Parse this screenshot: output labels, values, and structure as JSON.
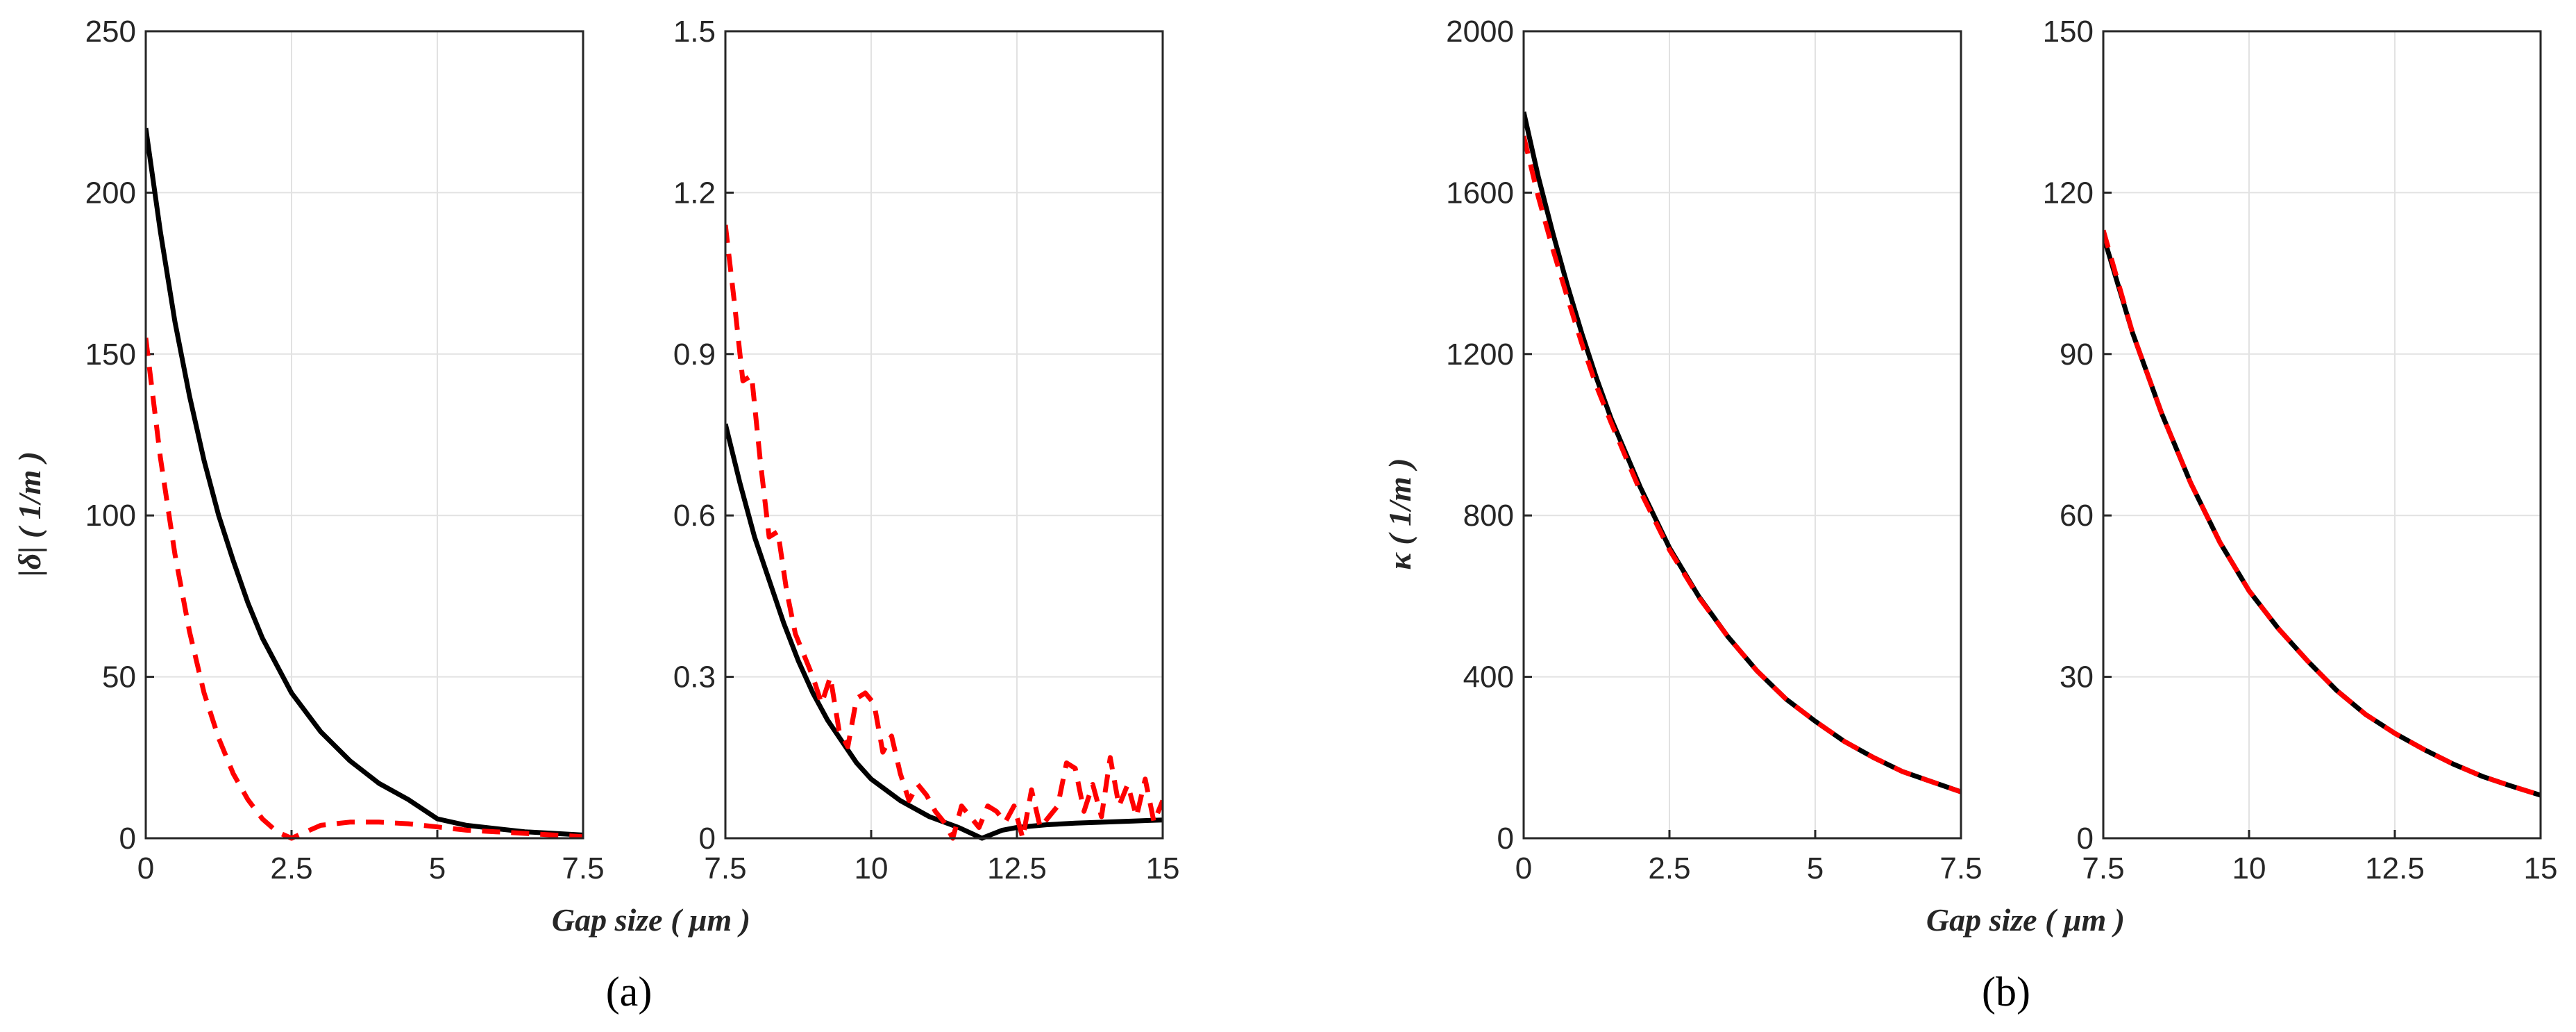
{
  "figure": {
    "panel_a_label": "(a)",
    "panel_b_label": "(b)",
    "a_xlabel": "Gap size ( μm )",
    "b_xlabel": "Gap size ( μm )",
    "a_ylabel": "|δ| ( 1/m )",
    "b_ylabel": "κ ( 1/m )"
  },
  "colors": {
    "solid_series": "#000000",
    "dashed_series": "#ff0000"
  },
  "chart_data": [
    {
      "type": "line",
      "panel": "a-left",
      "xlim": [
        0,
        7.5
      ],
      "ylim": [
        0,
        250
      ],
      "xticks": [
        "0",
        "2.5",
        "5",
        "7.5"
      ],
      "yticks": [
        "0",
        "50",
        "100",
        "150",
        "200",
        "250"
      ],
      "grid": true,
      "series": [
        {
          "style": "solid",
          "color": "#000000",
          "x": [
            0,
            0.25,
            0.5,
            0.75,
            1,
            1.25,
            1.5,
            1.75,
            2,
            2.5,
            3,
            3.5,
            4,
            4.5,
            5,
            5.5,
            6,
            6.5,
            7,
            7.5
          ],
          "y": [
            220,
            188,
            160,
            137,
            117,
            100,
            86,
            73,
            62,
            45,
            33,
            24,
            17,
            12,
            6,
            4,
            3,
            2,
            1.5,
            1
          ]
        },
        {
          "style": "dashed",
          "color": "#ff0000",
          "x": [
            0,
            0.25,
            0.5,
            0.75,
            1,
            1.25,
            1.5,
            1.75,
            2,
            2.25,
            2.5,
            2.75,
            3,
            3.5,
            4,
            4.5,
            5,
            5.5,
            6,
            6.5,
            7,
            7.5
          ],
          "y": [
            155,
            118,
            88,
            64,
            45,
            31,
            20,
            12,
            6,
            2,
            0,
            2,
            4,
            5,
            5,
            4.5,
            3.5,
            2.5,
            2,
            1.5,
            1,
            0.5
          ]
        }
      ]
    },
    {
      "type": "line",
      "panel": "a-right",
      "xlim": [
        7.5,
        15
      ],
      "ylim": [
        0,
        1.5
      ],
      "xticks": [
        "7.5",
        "10",
        "12.5",
        "15"
      ],
      "yticks": [
        "0",
        "0.3",
        "0.6",
        "0.9",
        "1.2",
        "1.5"
      ],
      "grid": true,
      "series": [
        {
          "style": "solid",
          "color": "#000000",
          "x": [
            7.5,
            7.75,
            8,
            8.25,
            8.5,
            8.75,
            9,
            9.25,
            9.5,
            9.75,
            10,
            10.5,
            11,
            11.5,
            11.9,
            12.25,
            12.5,
            13,
            13.5,
            14,
            14.5,
            15
          ],
          "y": [
            0.77,
            0.66,
            0.56,
            0.48,
            0.4,
            0.33,
            0.27,
            0.22,
            0.18,
            0.14,
            0.11,
            0.07,
            0.04,
            0.02,
            0.0,
            0.015,
            0.02,
            0.025,
            0.028,
            0.03,
            0.032,
            0.034
          ]
        },
        {
          "style": "dashed",
          "color": "#ff0000",
          "x": [
            7.5,
            7.65,
            7.8,
            7.95,
            8.1,
            8.25,
            8.4,
            8.55,
            8.7,
            8.85,
            9,
            9.15,
            9.3,
            9.45,
            9.6,
            9.75,
            9.9,
            10.05,
            10.2,
            10.35,
            10.5,
            10.65,
            10.8,
            10.95,
            11.1,
            11.25,
            11.4,
            11.55,
            11.7,
            11.85,
            12,
            12.15,
            12.3,
            12.45,
            12.6,
            12.75,
            12.9,
            13.05,
            13.2,
            13.35,
            13.5,
            13.65,
            13.8,
            13.95,
            14.1,
            14.25,
            14.4,
            14.55,
            14.7,
            14.85,
            15
          ],
          "y": [
            1.14,
            1.0,
            0.85,
            0.86,
            0.7,
            0.56,
            0.57,
            0.46,
            0.38,
            0.34,
            0.3,
            0.25,
            0.3,
            0.2,
            0.17,
            0.26,
            0.27,
            0.25,
            0.16,
            0.19,
            0.12,
            0.07,
            0.1,
            0.08,
            0.05,
            0.03,
            0.0,
            0.06,
            0.04,
            0.02,
            0.06,
            0.05,
            0.03,
            0.06,
            0.0,
            0.09,
            0.02,
            0.04,
            0.06,
            0.14,
            0.13,
            0.05,
            0.1,
            0.04,
            0.15,
            0.06,
            0.1,
            0.04,
            0.11,
            0.03,
            0.07
          ]
        }
      ]
    },
    {
      "type": "line",
      "panel": "b-left",
      "xlim": [
        0,
        7.5
      ],
      "ylim": [
        0,
        2000
      ],
      "xticks": [
        "0",
        "2.5",
        "5",
        "7.5"
      ],
      "yticks": [
        "0",
        "400",
        "800",
        "1200",
        "1600",
        "2000"
      ],
      "grid": true,
      "series": [
        {
          "style": "solid",
          "color": "#000000",
          "x": [
            0,
            0.25,
            0.5,
            0.75,
            1,
            1.25,
            1.5,
            2,
            2.5,
            3,
            3.5,
            4,
            4.5,
            5,
            5.5,
            6,
            6.5,
            7,
            7.5
          ],
          "y": [
            1800,
            1640,
            1500,
            1370,
            1250,
            1140,
            1040,
            870,
            720,
            600,
            500,
            415,
            345,
            290,
            240,
            200,
            165,
            140,
            115
          ]
        },
        {
          "style": "dashed",
          "color": "#ff0000",
          "x": [
            0,
            0.25,
            0.5,
            0.75,
            1,
            1.25,
            1.5,
            2,
            2.5,
            3,
            3.5,
            4,
            4.5,
            5,
            5.5,
            6,
            6.5,
            7,
            7.5
          ],
          "y": [
            1740,
            1590,
            1460,
            1340,
            1225,
            1120,
            1030,
            860,
            715,
            598,
            500,
            415,
            345,
            290,
            240,
            200,
            165,
            140,
            115
          ]
        }
      ]
    },
    {
      "type": "line",
      "panel": "b-right",
      "xlim": [
        7.5,
        15
      ],
      "ylim": [
        0,
        150
      ],
      "xticks": [
        "7.5",
        "10",
        "12.5",
        "15"
      ],
      "yticks": [
        "0",
        "30",
        "60",
        "90",
        "120",
        "150"
      ],
      "grid": true,
      "series": [
        {
          "style": "solid",
          "color": "#000000",
          "x": [
            7.5,
            8,
            8.5,
            9,
            9.5,
            10,
            10.5,
            11,
            11.5,
            12,
            12.5,
            13,
            13.5,
            14,
            14.5,
            15
          ],
          "y": [
            112,
            94,
            79,
            66,
            55,
            46,
            39,
            33,
            27.5,
            23,
            19.5,
            16.5,
            13.8,
            11.5,
            9.7,
            8
          ]
        },
        {
          "style": "dashed",
          "color": "#ff0000",
          "x": [
            7.5,
            8,
            8.5,
            9,
            9.5,
            10,
            10.5,
            11,
            11.5,
            12,
            12.5,
            13,
            13.5,
            14,
            14.5,
            15
          ],
          "y": [
            113,
            94,
            79,
            66,
            55,
            46,
            39,
            33,
            27.5,
            23,
            19.5,
            16.5,
            13.8,
            11.5,
            9.7,
            8
          ]
        }
      ]
    }
  ]
}
